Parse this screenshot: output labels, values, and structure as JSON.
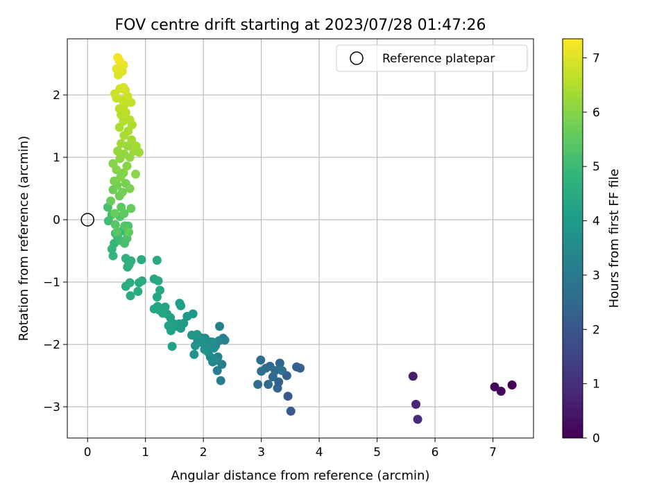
{
  "chart_data": {
    "type": "scatter",
    "title": "FOV centre drift starting at 2023/07/28 01:47:26",
    "xlabel": "Angular distance from reference (arcmin)",
    "ylabel": "Rotation from reference (arcmin)",
    "xlim": [
      -0.35,
      7.7
    ],
    "ylim": [
      -3.5,
      2.9
    ],
    "xticks": [
      0,
      1,
      2,
      3,
      4,
      5,
      6,
      7
    ],
    "yticks": [
      -3,
      -2,
      -1,
      0,
      1,
      2
    ],
    "xtick_labels": [
      "0",
      "1",
      "2",
      "3",
      "4",
      "5",
      "6",
      "7"
    ],
    "ytick_labels": [
      "−3",
      "−2",
      "−1",
      "0",
      "1",
      "2"
    ],
    "grid": true,
    "legend": {
      "position": "top-right",
      "entries": [
        {
          "label": "Reference platepar",
          "marker": "open-circle",
          "x": 0,
          "y": 0
        }
      ]
    },
    "colorbar": {
      "label": "Hours from first FF file",
      "colormap": "viridis",
      "range": [
        0,
        7.35
      ],
      "ticks": [
        0,
        1,
        2,
        3,
        4,
        5,
        6,
        7
      ],
      "tick_labels": [
        "0",
        "1",
        "2",
        "3",
        "4",
        "5",
        "6",
        "7"
      ]
    },
    "colormap_stops": [
      "#440154",
      "#482878",
      "#3e4989",
      "#31688e",
      "#26828e",
      "#1f9e89",
      "#35b779",
      "#6ece58",
      "#b5de2b",
      "#fde725"
    ],
    "points": [
      [
        7.33,
        -2.65,
        0.02
      ],
      [
        7.03,
        -2.68,
        0.1
      ],
      [
        7.14,
        -2.75,
        0.16
      ],
      [
        5.62,
        -2.51,
        0.62
      ],
      [
        5.67,
        -2.96,
        0.8
      ],
      [
        5.7,
        -3.2,
        0.9
      ],
      [
        3.51,
        -3.07,
        2.05
      ],
      [
        3.46,
        -2.83,
        2.12
      ],
      [
        3.44,
        -2.5,
        2.2
      ],
      [
        3.67,
        -2.38,
        2.25
      ],
      [
        3.61,
        -2.36,
        2.28
      ],
      [
        3.3,
        -2.6,
        2.32
      ],
      [
        3.28,
        -2.7,
        2.36
      ],
      [
        3.32,
        -2.3,
        2.4
      ],
      [
        3.15,
        -2.35,
        2.44
      ],
      [
        3.2,
        -2.52,
        2.46
      ],
      [
        3.12,
        -2.64,
        2.5
      ],
      [
        3.24,
        -2.42,
        2.53
      ],
      [
        3.08,
        -2.38,
        2.56
      ],
      [
        2.99,
        -2.25,
        2.6
      ],
      [
        2.94,
        -2.64,
        2.64
      ],
      [
        3.0,
        -2.43,
        2.68
      ],
      [
        3.36,
        -2.42,
        2.72
      ],
      [
        2.3,
        -2.58,
        3.05
      ],
      [
        2.32,
        -2.32,
        3.1
      ],
      [
        2.24,
        -2.42,
        3.14
      ],
      [
        2.28,
        -1.71,
        3.18
      ],
      [
        2.37,
        -1.93,
        3.22
      ],
      [
        2.34,
        -1.9,
        3.26
      ],
      [
        2.25,
        -2.2,
        3.3
      ],
      [
        2.21,
        -2.02,
        3.34
      ],
      [
        2.27,
        -1.94,
        3.38
      ],
      [
        2.16,
        -2.28,
        3.41
      ],
      [
        2.12,
        -2.2,
        3.44
      ],
      [
        2.2,
        -2.26,
        3.47
      ],
      [
        2.11,
        -1.96,
        3.5
      ],
      [
        2.06,
        -2.04,
        3.53
      ],
      [
        2.03,
        -1.9,
        3.56
      ],
      [
        2.08,
        -2.12,
        3.59
      ],
      [
        2.15,
        -1.96,
        3.62
      ],
      [
        2.18,
        -2.06,
        3.65
      ],
      [
        1.98,
        -1.97,
        3.68
      ],
      [
        1.95,
        -1.89,
        3.71
      ],
      [
        2.02,
        -2.08,
        3.74
      ],
      [
        1.9,
        -1.93,
        3.77
      ],
      [
        1.86,
        -2.02,
        3.8
      ],
      [
        1.84,
        -2.16,
        3.82
      ],
      [
        1.89,
        -1.84,
        3.85
      ],
      [
        1.8,
        -1.85,
        3.88
      ],
      [
        1.82,
        -1.51,
        3.91
      ],
      [
        1.72,
        -1.55,
        3.94
      ],
      [
        1.66,
        -1.66,
        3.97
      ],
      [
        1.61,
        -1.74,
        4.0
      ],
      [
        1.58,
        -1.67,
        4.02
      ],
      [
        1.55,
        -1.71,
        4.05
      ],
      [
        1.61,
        -1.38,
        4.08
      ],
      [
        1.59,
        -1.34,
        4.1
      ],
      [
        1.49,
        -1.67,
        4.13
      ],
      [
        1.43,
        -1.57,
        4.16
      ],
      [
        1.46,
        -2.03,
        4.18
      ],
      [
        1.44,
        -1.78,
        4.2
      ],
      [
        1.4,
        -1.7,
        4.22
      ],
      [
        1.37,
        -1.51,
        4.24
      ],
      [
        1.34,
        -1.4,
        4.26
      ],
      [
        1.3,
        -1.5,
        4.28
      ],
      [
        1.24,
        -1.45,
        4.3
      ],
      [
        1.21,
        -1.39,
        4.32
      ],
      [
        1.2,
        -1.24,
        4.34
      ],
      [
        1.15,
        -1.43,
        4.36
      ],
      [
        1.25,
        -1.13,
        4.38
      ],
      [
        1.22,
        -0.98,
        4.4
      ],
      [
        1.15,
        -0.95,
        4.42
      ],
      [
        1.2,
        -0.65,
        4.44
      ],
      [
        0.93,
        -0.64,
        4.46
      ],
      [
        0.94,
        -0.98,
        4.48
      ],
      [
        0.89,
        -1.01,
        4.5
      ],
      [
        0.87,
        -1.15,
        4.52
      ],
      [
        0.74,
        -1.22,
        4.54
      ],
      [
        0.73,
        -1.01,
        4.56
      ],
      [
        0.66,
        -1.07,
        4.58
      ],
      [
        0.72,
        -0.72,
        4.6
      ],
      [
        0.69,
        -0.76,
        4.62
      ],
      [
        0.75,
        -0.66,
        4.64
      ],
      [
        0.66,
        -0.62,
        4.66
      ],
      [
        0.71,
        -0.68,
        4.68
      ],
      [
        0.44,
        -0.58,
        4.8
      ],
      [
        0.42,
        -0.47,
        4.84
      ],
      [
        0.46,
        -0.38,
        4.88
      ],
      [
        0.52,
        -0.28,
        4.92
      ],
      [
        0.6,
        -0.18,
        4.96
      ],
      [
        0.48,
        -0.22,
        5.0
      ],
      [
        0.55,
        -0.33,
        5.04
      ],
      [
        0.36,
        -0.02,
        5.08
      ],
      [
        0.42,
        0.08,
        5.12
      ],
      [
        0.35,
        0.2,
        5.16
      ],
      [
        0.64,
        -0.38,
        5.2
      ],
      [
        0.68,
        -0.3,
        5.24
      ],
      [
        0.7,
        -0.1,
        5.28
      ],
      [
        0.56,
        0.05,
        5.32
      ],
      [
        0.64,
        -0.1,
        5.36
      ],
      [
        0.51,
        -0.2,
        5.4
      ],
      [
        0.48,
        -0.08,
        5.44
      ],
      [
        0.58,
        0.2,
        5.48
      ],
      [
        0.63,
        0.1,
        5.52
      ],
      [
        0.71,
        -0.2,
        5.56
      ],
      [
        0.75,
        0.18,
        5.6
      ],
      [
        0.4,
        0.3,
        5.63
      ],
      [
        0.47,
        0.1,
        5.66
      ],
      [
        0.44,
        0.48,
        5.69
      ],
      [
        0.55,
        0.38,
        5.72
      ],
      [
        0.6,
        0.44,
        5.75
      ],
      [
        0.51,
        0.55,
        5.78
      ],
      [
        0.66,
        0.58,
        5.81
      ],
      [
        0.46,
        0.62,
        5.84
      ],
      [
        0.73,
        0.5,
        5.87
      ],
      [
        0.57,
        0.68,
        5.9
      ],
      [
        0.62,
        0.75,
        5.93
      ],
      [
        0.5,
        0.8,
        5.96
      ],
      [
        0.44,
        0.9,
        5.99
      ],
      [
        0.68,
        0.86,
        6.02
      ],
      [
        0.83,
        0.73,
        6.05
      ],
      [
        0.56,
        0.98,
        6.08
      ],
      [
        0.63,
        1.05,
        6.11
      ],
      [
        0.73,
        1.0,
        6.14
      ],
      [
        0.52,
        1.1,
        6.17
      ],
      [
        0.69,
        1.18,
        6.2
      ],
      [
        0.8,
        1.1,
        6.23
      ],
      [
        0.89,
        1.08,
        6.26
      ],
      [
        0.58,
        1.22,
        6.29
      ],
      [
        0.76,
        1.28,
        6.32
      ],
      [
        0.84,
        1.18,
        6.35
      ],
      [
        0.63,
        1.35,
        6.38
      ],
      [
        0.7,
        1.42,
        6.41
      ],
      [
        0.55,
        1.48,
        6.44
      ],
      [
        0.77,
        1.52,
        6.47
      ],
      [
        0.62,
        1.58,
        6.5
      ],
      [
        0.73,
        1.6,
        6.53
      ],
      [
        0.58,
        1.68,
        6.56
      ],
      [
        0.66,
        1.72,
        6.59
      ],
      [
        0.55,
        1.78,
        6.62
      ],
      [
        0.64,
        1.85,
        6.65
      ],
      [
        0.75,
        1.88,
        6.68
      ],
      [
        0.6,
        1.92,
        6.71
      ],
      [
        0.5,
        1.95,
        6.74
      ],
      [
        0.69,
        1.98,
        6.77
      ],
      [
        0.47,
        2.02,
        6.8
      ],
      [
        0.65,
        2.08,
        6.83
      ],
      [
        0.56,
        2.1,
        6.86
      ],
      [
        0.62,
        2.12,
        6.89
      ],
      [
        0.53,
        2.32,
        6.95
      ],
      [
        0.6,
        2.38,
        7.0
      ],
      [
        0.5,
        2.42,
        7.05
      ],
      [
        0.62,
        2.48,
        7.1
      ],
      [
        0.55,
        2.55,
        7.15
      ],
      [
        0.52,
        2.6,
        7.25
      ]
    ]
  }
}
